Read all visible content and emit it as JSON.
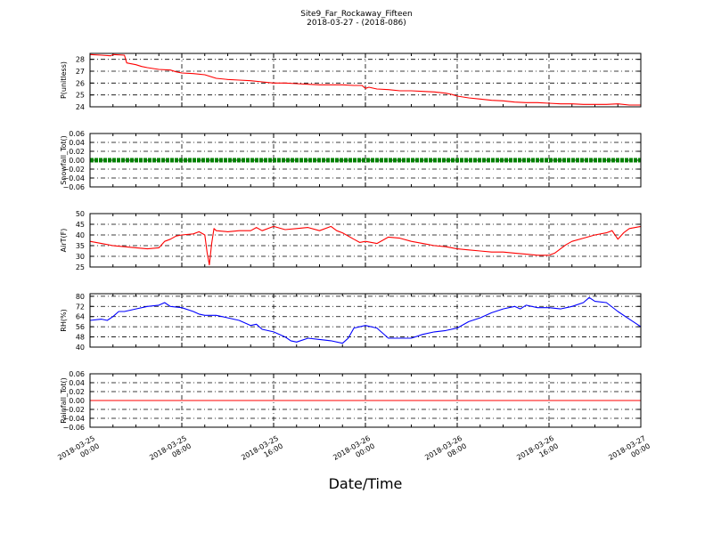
{
  "figure": {
    "title_line1": "Site9_Far_Rockaway_Fifteen",
    "title_line2": "2018-03-27 - (2018-086)",
    "xlabel": "Date/Time",
    "x_ticks": [
      {
        "t": 0,
        "line1": "2018-03-25",
        "line2": "00:00"
      },
      {
        "t": 8,
        "line1": "2018-03-25",
        "line2": "08:00"
      },
      {
        "t": 16,
        "line1": "2018-03-25",
        "line2": "16:00"
      },
      {
        "t": 24,
        "line1": "2018-03-26",
        "line2": "00:00"
      },
      {
        "t": 32,
        "line1": "2018-03-26",
        "line2": "08:00"
      },
      {
        "t": 40,
        "line1": "2018-03-26",
        "line2": "16:00"
      },
      {
        "t": 48,
        "line1": "2018-03-27",
        "line2": "00:00"
      }
    ]
  },
  "chart_data": [
    {
      "type": "line",
      "ylabel": "P(unitless)",
      "ylim": [
        24,
        28.5
      ],
      "yticks": [
        24,
        25,
        26,
        27,
        28
      ],
      "ytick_labels": [
        "24",
        "25",
        "26",
        "27",
        "28"
      ],
      "xlim_hours": [
        0,
        48
      ],
      "grid": true,
      "series": [
        {
          "color": "#ff0000",
          "style": "line",
          "points": [
            [
              0,
              28.4
            ],
            [
              1,
              28.35
            ],
            [
              1.8,
              28.3
            ],
            [
              2,
              28.4
            ],
            [
              3,
              28.35
            ],
            [
              3.2,
              27.7
            ],
            [
              4,
              27.55
            ],
            [
              4.5,
              27.4
            ],
            [
              5,
              27.3
            ],
            [
              6,
              27.15
            ],
            [
              7,
              27.1
            ],
            [
              7.5,
              26.95
            ],
            [
              8,
              26.85
            ],
            [
              9,
              26.8
            ],
            [
              10,
              26.7
            ],
            [
              10.5,
              26.55
            ],
            [
              11,
              26.4
            ],
            [
              12,
              26.3
            ],
            [
              13,
              26.25
            ],
            [
              14,
              26.2
            ],
            [
              15,
              26.1
            ],
            [
              15.5,
              26.05
            ],
            [
              16,
              26.0
            ],
            [
              17,
              26.0
            ],
            [
              18,
              25.95
            ],
            [
              19,
              25.9
            ],
            [
              20,
              25.85
            ],
            [
              21,
              25.85
            ],
            [
              22,
              25.85
            ],
            [
              23,
              25.8
            ],
            [
              23.7,
              25.8
            ],
            [
              24,
              25.55
            ],
            [
              24.3,
              25.65
            ],
            [
              25,
              25.5
            ],
            [
              26,
              25.45
            ],
            [
              27,
              25.35
            ],
            [
              28,
              25.35
            ],
            [
              29,
              25.3
            ],
            [
              30,
              25.25
            ],
            [
              31,
              25.15
            ],
            [
              31.5,
              25.05
            ],
            [
              32,
              24.9
            ],
            [
              33,
              24.75
            ],
            [
              34,
              24.65
            ],
            [
              35,
              24.55
            ],
            [
              36,
              24.5
            ],
            [
              37,
              24.4
            ],
            [
              38,
              24.35
            ],
            [
              39,
              24.35
            ],
            [
              40,
              24.3
            ],
            [
              41,
              24.25
            ],
            [
              42,
              24.25
            ],
            [
              43,
              24.2
            ],
            [
              44,
              24.2
            ],
            [
              45,
              24.2
            ],
            [
              46,
              24.25
            ],
            [
              47,
              24.15
            ],
            [
              48,
              24.15
            ]
          ]
        }
      ]
    },
    {
      "type": "line",
      "ylabel": "Snowfall_Tot()",
      "ylim": [
        -0.06,
        0.06
      ],
      "yticks": [
        -0.06,
        -0.04,
        -0.02,
        0,
        0.02,
        0.04,
        0.06
      ],
      "ytick_labels": [
        "−0.06",
        "−0.04",
        "−0.02",
        "0.00",
        "0.02",
        "0.04",
        "0.06"
      ],
      "xlim_hours": [
        0,
        48
      ],
      "grid": true,
      "series": [
        {
          "color": "#008000",
          "style": "markers",
          "points": [
            [
              0,
              0
            ],
            [
              48,
              0
            ]
          ]
        }
      ]
    },
    {
      "type": "line",
      "ylabel": "AirT(F)",
      "ylim": [
        25,
        50
      ],
      "yticks": [
        25,
        30,
        35,
        40,
        45,
        50
      ],
      "ytick_labels": [
        "25",
        "30",
        "35",
        "40",
        "45",
        "50"
      ],
      "xlim_hours": [
        0,
        48
      ],
      "grid": true,
      "series": [
        {
          "color": "#ff0000",
          "style": "line",
          "points": [
            [
              0,
              37
            ],
            [
              1,
              36
            ],
            [
              2,
              35
            ],
            [
              3,
              34.5
            ],
            [
              4,
              34
            ],
            [
              5,
              33.5
            ],
            [
              6,
              34
            ],
            [
              6.5,
              37
            ],
            [
              7,
              38
            ],
            [
              7.5,
              39.5
            ],
            [
              8,
              40
            ],
            [
              9,
              40.5
            ],
            [
              9.5,
              41.5
            ],
            [
              10,
              40
            ],
            [
              10.2,
              32
            ],
            [
              10.4,
              26
            ],
            [
              10.6,
              36
            ],
            [
              10.8,
              43
            ],
            [
              11,
              42
            ],
            [
              12,
              41.5
            ],
            [
              13,
              42
            ],
            [
              14,
              42
            ],
            [
              14.5,
              43.5
            ],
            [
              15,
              42
            ],
            [
              16,
              44
            ],
            [
              17,
              42.5
            ],
            [
              18,
              43
            ],
            [
              19,
              43.5
            ],
            [
              20,
              42
            ],
            [
              21,
              44
            ],
            [
              21.5,
              42
            ],
            [
              22,
              41
            ],
            [
              23,
              38
            ],
            [
              23.5,
              36.5
            ],
            [
              24,
              37
            ],
            [
              25,
              36
            ],
            [
              26,
              39
            ],
            [
              27,
              38.5
            ],
            [
              28,
              37
            ],
            [
              29,
              36
            ],
            [
              30,
              35
            ],
            [
              31,
              34.5
            ],
            [
              32,
              33.5
            ],
            [
              33,
              33
            ],
            [
              34,
              32.5
            ],
            [
              35,
              32
            ],
            [
              36,
              32
            ],
            [
              37,
              31.5
            ],
            [
              38,
              31
            ],
            [
              39,
              30.5
            ],
            [
              40,
              30.5
            ],
            [
              40.5,
              31.5
            ],
            [
              41,
              33.5
            ],
            [
              41.5,
              35.5
            ],
            [
              42,
              37
            ],
            [
              43,
              38.5
            ],
            [
              44,
              40
            ],
            [
              45,
              41
            ],
            [
              45.5,
              42
            ],
            [
              46,
              38
            ],
            [
              46.5,
              41
            ],
            [
              47,
              43
            ],
            [
              48,
              44
            ]
          ]
        }
      ]
    },
    {
      "type": "line",
      "ylabel": "RH(%)",
      "ylim": [
        40,
        82
      ],
      "yticks": [
        40,
        48,
        56,
        64,
        72,
        80
      ],
      "ytick_labels": [
        "40",
        "48",
        "56",
        "64",
        "72",
        "80"
      ],
      "xlim_hours": [
        0,
        48
      ],
      "grid": true,
      "series": [
        {
          "color": "#0000ff",
          "style": "line",
          "points": [
            [
              0,
              61
            ],
            [
              1,
              62
            ],
            [
              1.5,
              61
            ],
            [
              2,
              64
            ],
            [
              2.5,
              68
            ],
            [
              3,
              68
            ],
            [
              4,
              70
            ],
            [
              5,
              72
            ],
            [
              6,
              73
            ],
            [
              6.5,
              75
            ],
            [
              7,
              72
            ],
            [
              8,
              71
            ],
            [
              9,
              68
            ],
            [
              9.5,
              66
            ],
            [
              10,
              65
            ],
            [
              11,
              65
            ],
            [
              12,
              63
            ],
            [
              13,
              61
            ],
            [
              14,
              57
            ],
            [
              14.5,
              58
            ],
            [
              15,
              54
            ],
            [
              16,
              52
            ],
            [
              17,
              48
            ],
            [
              17.5,
              45
            ],
            [
              18,
              44
            ],
            [
              19,
              47
            ],
            [
              20,
              46
            ],
            [
              21,
              45
            ],
            [
              22,
              43
            ],
            [
              22.5,
              47
            ],
            [
              23,
              55
            ],
            [
              24,
              57
            ],
            [
              25,
              55
            ],
            [
              26,
              47
            ],
            [
              27,
              47
            ],
            [
              28,
              47
            ],
            [
              29,
              50
            ],
            [
              30,
              52
            ],
            [
              31,
              53
            ],
            [
              32,
              55
            ],
            [
              33,
              60
            ],
            [
              34,
              63
            ],
            [
              35,
              67
            ],
            [
              36,
              70
            ],
            [
              37,
              72
            ],
            [
              37.5,
              70
            ],
            [
              38,
              73
            ],
            [
              39,
              71
            ],
            [
              40,
              71
            ],
            [
              41,
              70
            ],
            [
              42,
              72
            ],
            [
              43,
              75
            ],
            [
              43.5,
              79
            ],
            [
              44,
              76
            ],
            [
              45,
              75
            ],
            [
              46,
              68
            ],
            [
              47,
              62
            ],
            [
              48,
              56
            ]
          ]
        }
      ]
    },
    {
      "type": "line",
      "ylabel": "Rainfall_Tot()",
      "ylim": [
        -0.06,
        0.06
      ],
      "yticks": [
        -0.06,
        -0.04,
        -0.02,
        0,
        0.02,
        0.04,
        0.06
      ],
      "ytick_labels": [
        "−0.06",
        "−0.04",
        "−0.02",
        "0.00",
        "0.02",
        "0.04",
        "0.06"
      ],
      "xlim_hours": [
        0,
        48
      ],
      "grid": true,
      "series": [
        {
          "color": "#ff0000",
          "style": "line",
          "points": [
            [
              0,
              0
            ],
            [
              48,
              0
            ]
          ]
        }
      ]
    }
  ]
}
